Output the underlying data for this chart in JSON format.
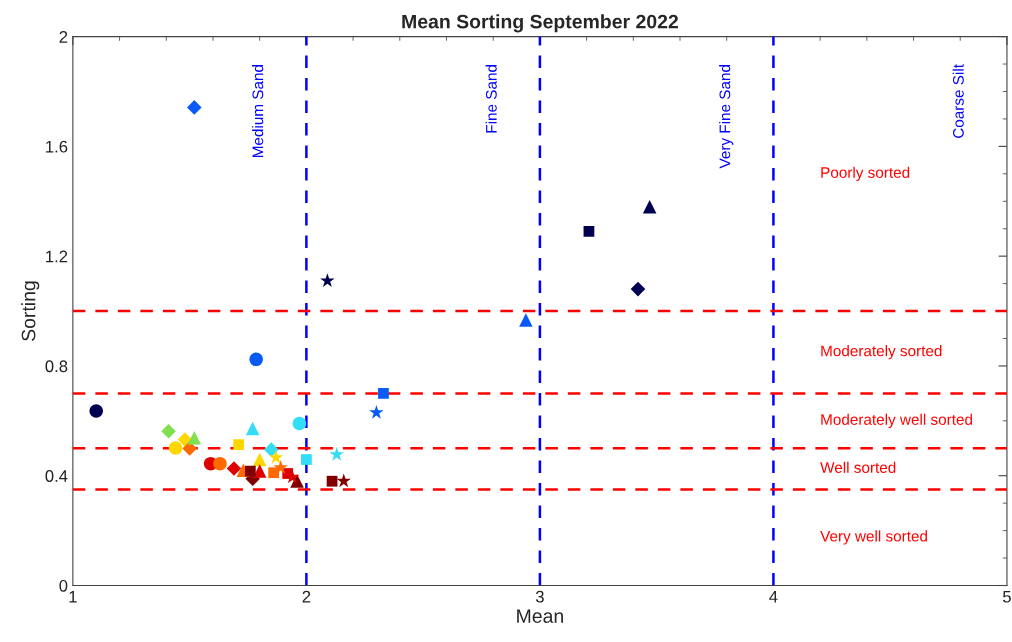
{
  "chart_data": {
    "type": "scatter",
    "title": "Mean Sorting September 2022",
    "xlabel": "Mean",
    "ylabel": "Sorting",
    "xlim": [
      1,
      5
    ],
    "xticks": [
      1,
      2,
      3,
      4,
      5
    ],
    "ylim": [
      0,
      2
    ],
    "yticks": [
      0,
      0.4,
      0.8,
      1.2,
      1.6,
      2
    ],
    "grid": false,
    "legend": false,
    "series": [
      {
        "marker": "circle",
        "x": [
          1.1,
          1.785,
          1.97,
          1.44,
          1.59,
          1.63
        ],
        "values": [
          0.636,
          0.824,
          0.59,
          0.501,
          0.444,
          0.444
        ],
        "colors": [
          "#000050",
          "#0a5af5",
          "#33ddf5",
          "#ffd700",
          "#dd0000",
          "#ff6a00"
        ]
      },
      {
        "marker": "diamond",
        "x": [
          1.52,
          3.42,
          1.41,
          1.48,
          1.5,
          1.85,
          1.69,
          1.77
        ],
        "values": [
          1.742,
          1.08,
          0.562,
          0.532,
          0.499,
          0.495,
          0.426,
          0.389
        ],
        "colors": [
          "#0a5af5",
          "#000050",
          "#80e050",
          "#ffd700",
          "#ff6a00",
          "#33ddf5",
          "#dd0000",
          "#800000"
        ]
      },
      {
        "marker": "triangle",
        "x": [
          3.47,
          2.94,
          1.52,
          1.77,
          1.8,
          1.73,
          1.8,
          1.96
        ],
        "values": [
          1.38,
          0.967,
          0.538,
          0.572,
          0.459,
          0.42,
          0.417,
          0.381
        ],
        "colors": [
          "#000050",
          "#0a5af5",
          "#80e050",
          "#33ddf5",
          "#ffd700",
          "#ff6a00",
          "#dd0000",
          "#800000"
        ]
      },
      {
        "marker": "square",
        "x": [
          3.21,
          2.33,
          1.71,
          2.0,
          1.86,
          1.92,
          1.76,
          2.11
        ],
        "values": [
          1.29,
          0.7,
          0.513,
          0.459,
          0.411,
          0.408,
          0.417,
          0.38
        ],
        "colors": [
          "#000050",
          "#0a5af5",
          "#ffd700",
          "#33ddf5",
          "#ff6a00",
          "#dd0000",
          "#800000",
          "#800000"
        ]
      },
      {
        "marker": "star",
        "x": [
          2.09,
          2.3,
          2.13,
          1.87,
          1.89,
          1.94,
          2.16
        ],
        "values": [
          1.11,
          0.63,
          0.477,
          0.466,
          0.43,
          0.395,
          0.38
        ],
        "colors": [
          "#000050",
          "#0a5af5",
          "#33ddf5",
          "#ffd700",
          "#ff6a00",
          "#dd0000",
          "#800000"
        ]
      }
    ],
    "ref_lines": [
      {
        "axis": "x",
        "value": 2,
        "color": "#0000ff",
        "line_style": "dashed"
      },
      {
        "axis": "x",
        "value": 3,
        "color": "#0000ff",
        "line_style": "dashed"
      },
      {
        "axis": "x",
        "value": 4,
        "color": "#0000ff",
        "line_style": "dashed"
      },
      {
        "axis": "y",
        "value": 1.0,
        "color": "#ff0000",
        "line_style": "dashed"
      },
      {
        "axis": "y",
        "value": 0.7,
        "color": "#ff0000",
        "line_style": "dashed"
      },
      {
        "axis": "y",
        "value": 0.5,
        "color": "#ff0000",
        "line_style": "dashed"
      },
      {
        "axis": "y",
        "value": 0.35,
        "color": "#ff0000",
        "line_style": "dashed"
      }
    ],
    "annotations": [
      "Medium Sand",
      "Fine Sand",
      "Very Fine Sand",
      "Coarse Silt",
      "Poorly sorted",
      "Moderately sorted",
      "Moderately well sorted",
      "Well sorted",
      "Very well sorted"
    ]
  }
}
